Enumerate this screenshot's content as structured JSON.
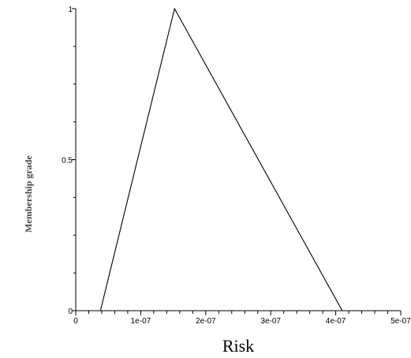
{
  "chart_data": {
    "type": "line",
    "title": "",
    "xlabel": "Risk",
    "ylabel": "Membership grade",
    "xlim": [
      0,
      5e-07
    ],
    "ylim": [
      0,
      1
    ],
    "x_ticks": [
      0,
      1e-07,
      2e-07,
      3e-07,
      4e-07,
      5e-07
    ],
    "x_tick_labels": [
      "0",
      "1e-07",
      "2e-07",
      "3e-07",
      "4e-07",
      "5e-07"
    ],
    "y_ticks": [
      0,
      0.5,
      1
    ],
    "y_tick_labels": [
      "0",
      "0.5",
      "1"
    ],
    "grid": false,
    "series": [
      {
        "x": [
          3.8e-08,
          1.52e-07,
          4.1e-07
        ],
        "y": [
          0,
          1,
          0
        ]
      }
    ]
  },
  "colors": {
    "line": "#000000",
    "axis": "#000000"
  }
}
